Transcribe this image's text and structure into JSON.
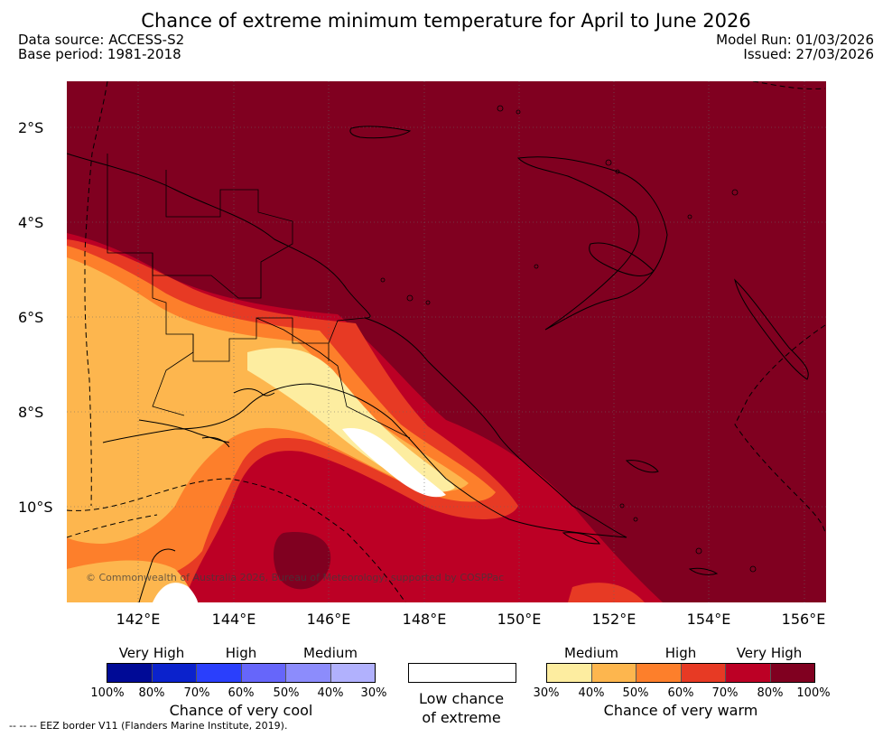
{
  "header": {
    "title": "Chance of extreme minimum temperature for April to June 2026",
    "data_source": "Data source: ACCESS-S2",
    "base_period": "Base period: 1981-2018",
    "model_run": "Model Run: 01/03/2026",
    "issued": "Issued: 27/03/2026"
  },
  "map": {
    "lat_labels": [
      "2°S",
      "4°S",
      "6°S",
      "8°S",
      "10°S"
    ],
    "lon_labels": [
      "142°E",
      "144°E",
      "146°E",
      "148°E",
      "150°E",
      "152°E",
      "154°E",
      "156°E"
    ],
    "copyright": "© Commonwealth of Australia 2026, Bureau of Meteorology, supported by COSPPac",
    "dominant_category": "Very High chance of very warm (80%-100%)"
  },
  "legend": {
    "cool": {
      "headings": [
        "Very High",
        "High",
        "Medium"
      ],
      "colors": [
        "#000a96",
        "#0b22cc",
        "#2a3ffc",
        "#6666fa",
        "#8c8cfc",
        "#b1b1fd"
      ],
      "ticks": [
        "100%",
        "80%",
        "70%",
        "60%",
        "50%",
        "40%",
        "30%"
      ],
      "caption": "Chance of very cool"
    },
    "neutral": {
      "color": "#ffffff",
      "caption_line1": "Low chance",
      "caption_line2": "of extreme"
    },
    "warm": {
      "headings": [
        "Medium",
        "High",
        "Very High"
      ],
      "colors": [
        "#fdeda0",
        "#fdb64e",
        "#fd7f2b",
        "#e73a24",
        "#bc0025",
        "#800020"
      ],
      "ticks": [
        "30%",
        "40%",
        "50%",
        "60%",
        "70%",
        "80%",
        "100%"
      ],
      "caption": "Chance of very warm"
    }
  },
  "footnote": "-- -- -- EEZ border V11 (Flanders Marine Institute, 2019)."
}
